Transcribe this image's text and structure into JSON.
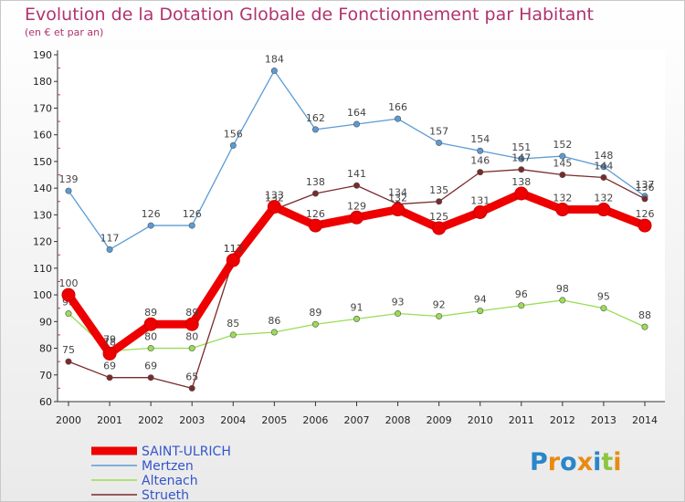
{
  "title": "Evolution de la Dotation Globale de Fonctionnement par Habitant",
  "subtitle": "(en € et par an)",
  "brand": "Proxiti",
  "chart_data": {
    "type": "line",
    "title": "Evolution de la Dotation Globale de Fonctionnement par Habitant",
    "ylabel": "(en € et par an)",
    "x": [
      2000,
      2001,
      2002,
      2003,
      2004,
      2005,
      2006,
      2007,
      2008,
      2009,
      2010,
      2011,
      2012,
      2013,
      2014
    ],
    "ylim": [
      60,
      190
    ],
    "yticks": [
      60,
      70,
      80,
      90,
      100,
      110,
      120,
      130,
      140,
      150,
      160,
      170,
      180,
      190
    ],
    "grid": false,
    "legend": "bottom-left",
    "series": [
      {
        "name": "SAINT-ULRICH",
        "color": "#ee0000",
        "emphasis": true,
        "values": [
          100,
          78,
          89,
          89,
          113,
          133,
          126,
          129,
          132,
          125,
          131,
          138,
          132,
          132,
          126
        ]
      },
      {
        "name": "Mertzen",
        "color": "#5b9bd5",
        "emphasis": false,
        "values": [
          139,
          117,
          126,
          126,
          156,
          184,
          162,
          164,
          166,
          157,
          154,
          151,
          152,
          148,
          137
        ]
      },
      {
        "name": "Altenach",
        "color": "#99dd55",
        "emphasis": false,
        "values": [
          93,
          79,
          80,
          80,
          85,
          86,
          89,
          91,
          93,
          92,
          94,
          96,
          98,
          95,
          88
        ]
      },
      {
        "name": "Strueth",
        "color": "#7a2a2a",
        "emphasis": false,
        "values": [
          75,
          69,
          69,
          65,
          113,
          132,
          138,
          141,
          134,
          135,
          146,
          147,
          145,
          144,
          136
        ]
      }
    ]
  }
}
